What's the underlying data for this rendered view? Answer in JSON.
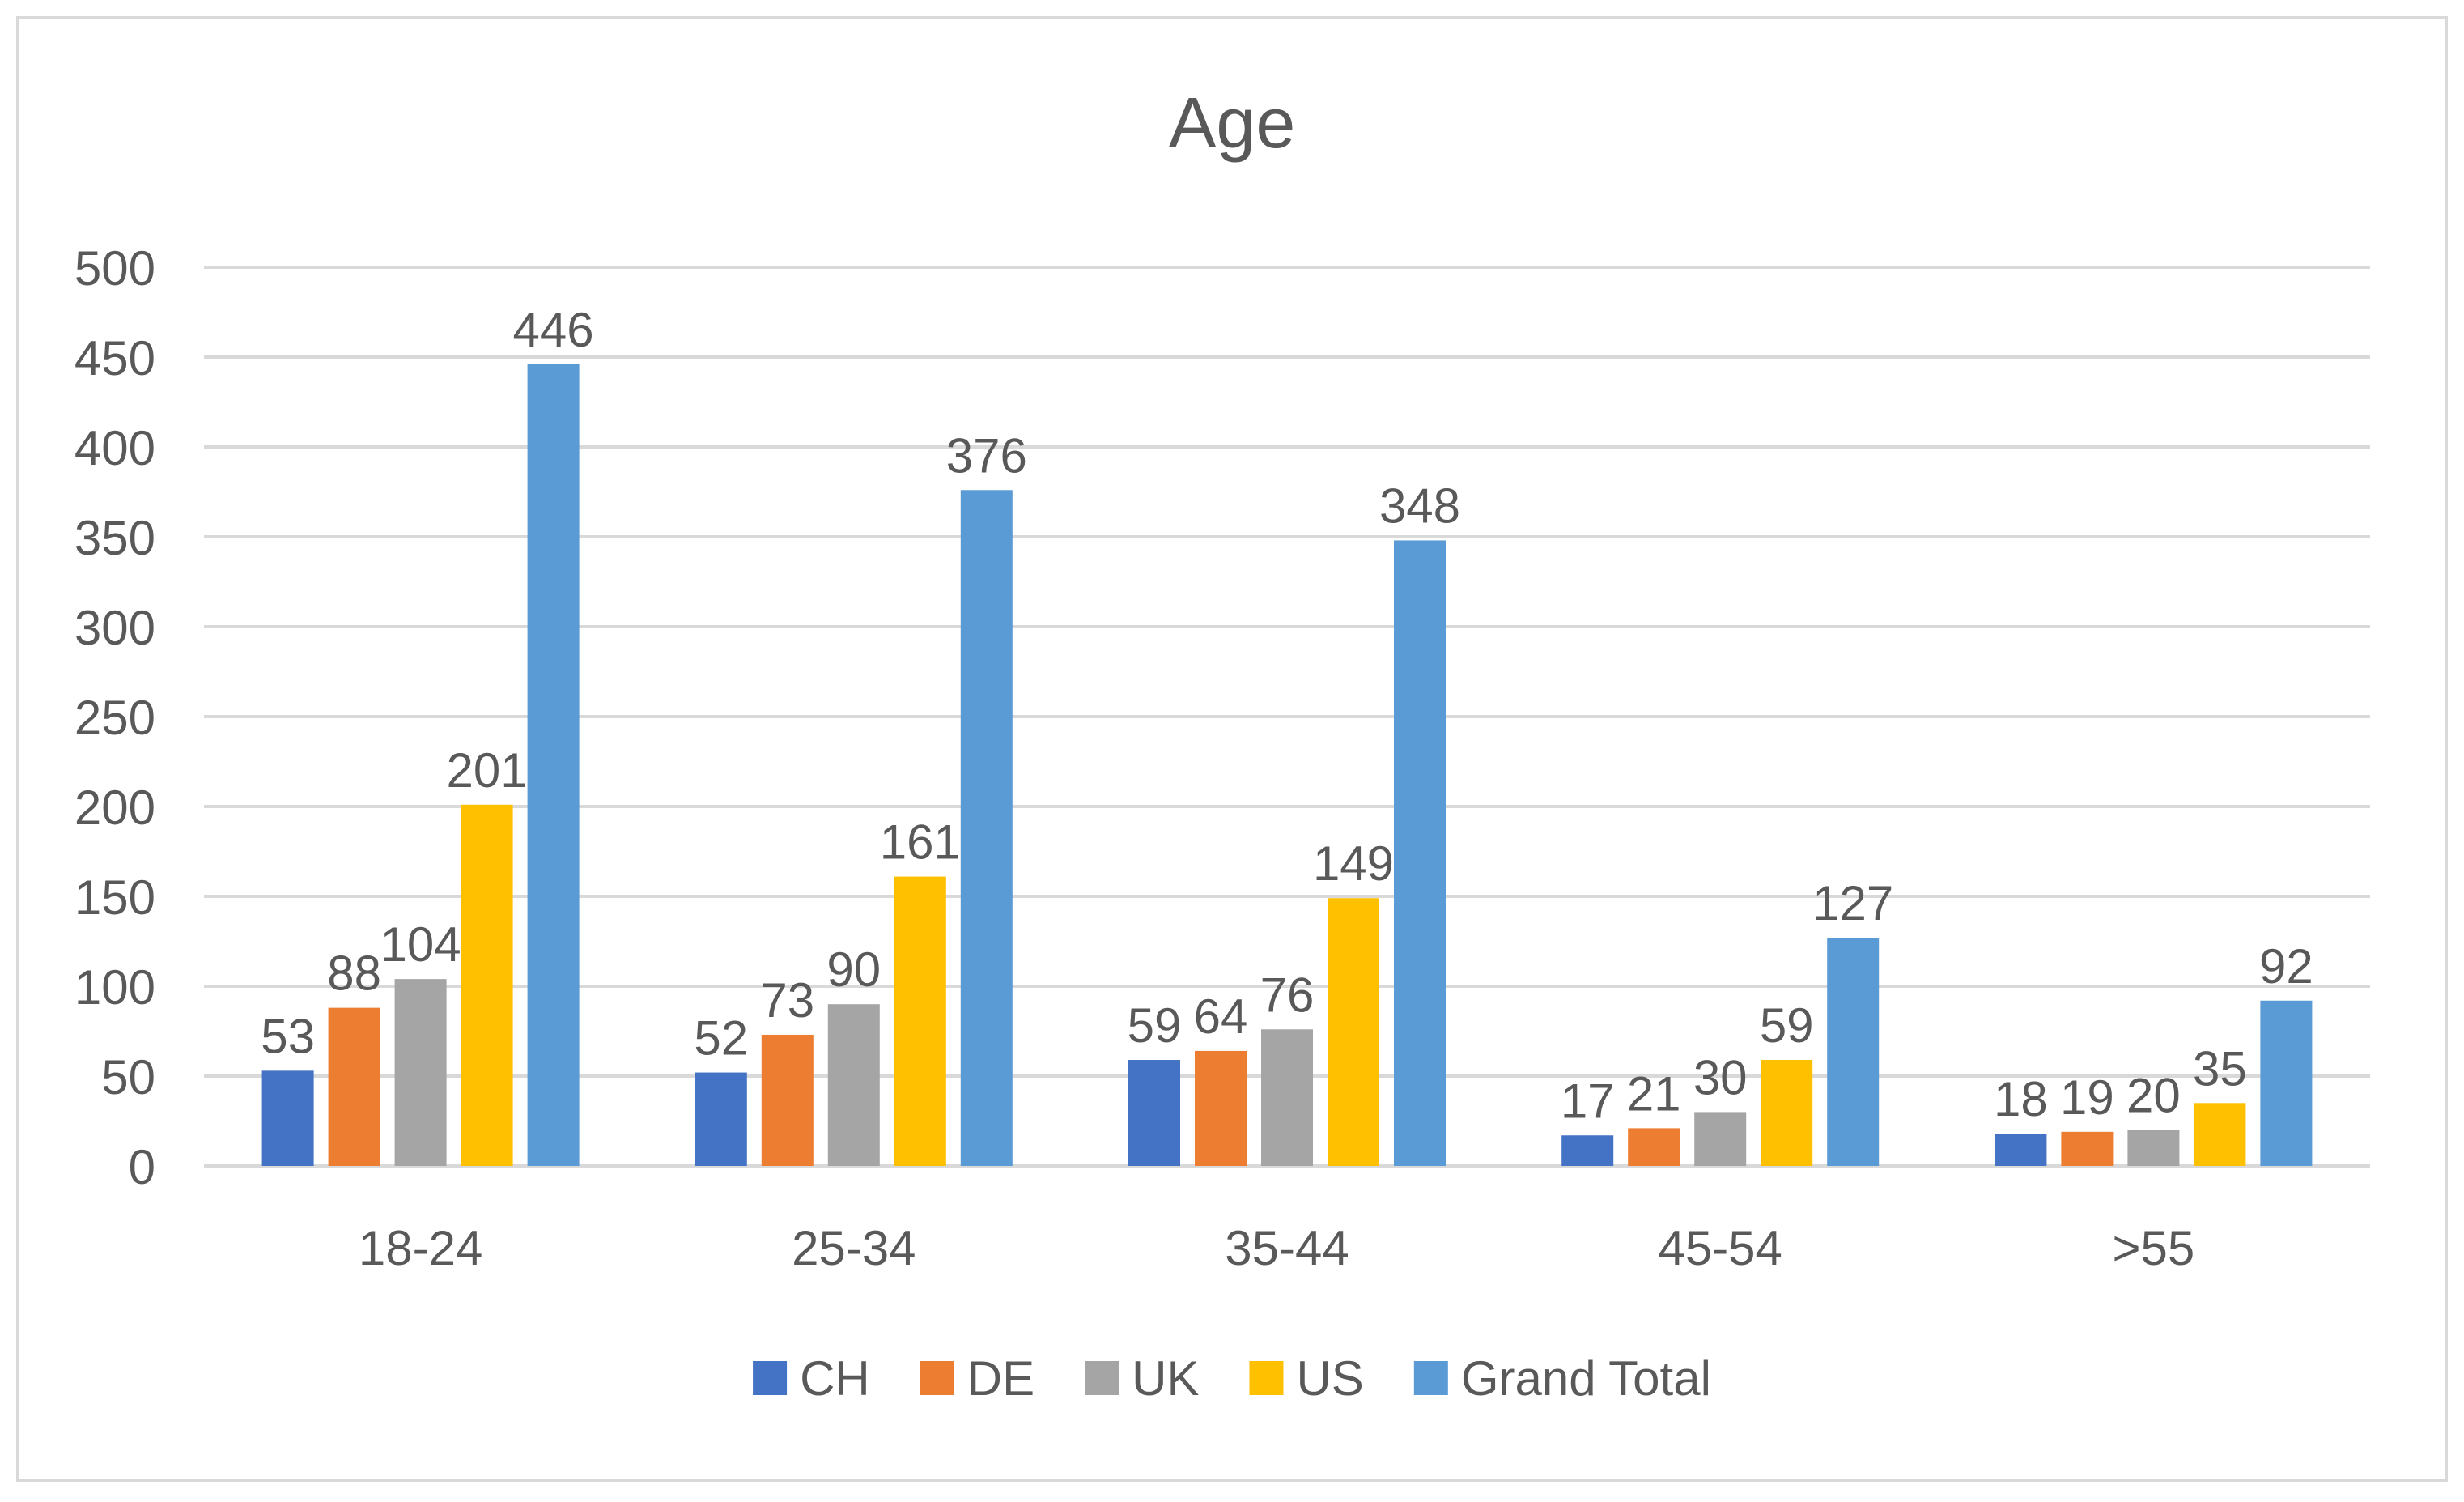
{
  "chart_data": {
    "type": "bar",
    "title": "Age",
    "xlabel": "",
    "ylabel": "",
    "ylim": [
      0,
      500
    ],
    "yticks": [
      0,
      50,
      100,
      150,
      200,
      250,
      300,
      350,
      400,
      450,
      500
    ],
    "ytick_labels": [
      "0",
      "50",
      "100",
      "150",
      "200",
      "250",
      "300",
      "350",
      "400",
      "450",
      "500"
    ],
    "grid": true,
    "legend_position": "bottom",
    "categories": [
      "18-24",
      "25-34",
      "35-44",
      "45-54",
      ">55"
    ],
    "series": [
      {
        "name": "CH",
        "values": [
          53,
          52,
          59,
          17,
          18
        ],
        "labels": [
          "53",
          "52",
          "59",
          "17",
          "18"
        ],
        "color": "#4472c4"
      },
      {
        "name": "DE",
        "values": [
          88,
          73,
          64,
          21,
          19
        ],
        "labels": [
          "88",
          "73",
          "64",
          "21",
          "19"
        ],
        "color": "#ed7d31"
      },
      {
        "name": "UK",
        "values": [
          104,
          90,
          76,
          30,
          20
        ],
        "labels": [
          "104",
          "90",
          "76",
          "30",
          "20"
        ],
        "color": "#a5a5a5"
      },
      {
        "name": "US",
        "values": [
          201,
          161,
          149,
          59,
          35
        ],
        "labels": [
          "201",
          "161",
          "149",
          "59",
          "35"
        ],
        "color": "#ffc000"
      },
      {
        "name": "Grand Total",
        "values": [
          446,
          376,
          348,
          127,
          92
        ],
        "labels": [
          "446",
          "376",
          "348",
          "127",
          "92"
        ],
        "color": "#5b9bd5"
      }
    ]
  },
  "style": {
    "background": "#ffffff",
    "border_color": "#d9d9d9",
    "grid_color": "#d9d9d9",
    "text_color": "#595959",
    "title_color": "#595959",
    "axis_color": "#d9d9d9"
  }
}
